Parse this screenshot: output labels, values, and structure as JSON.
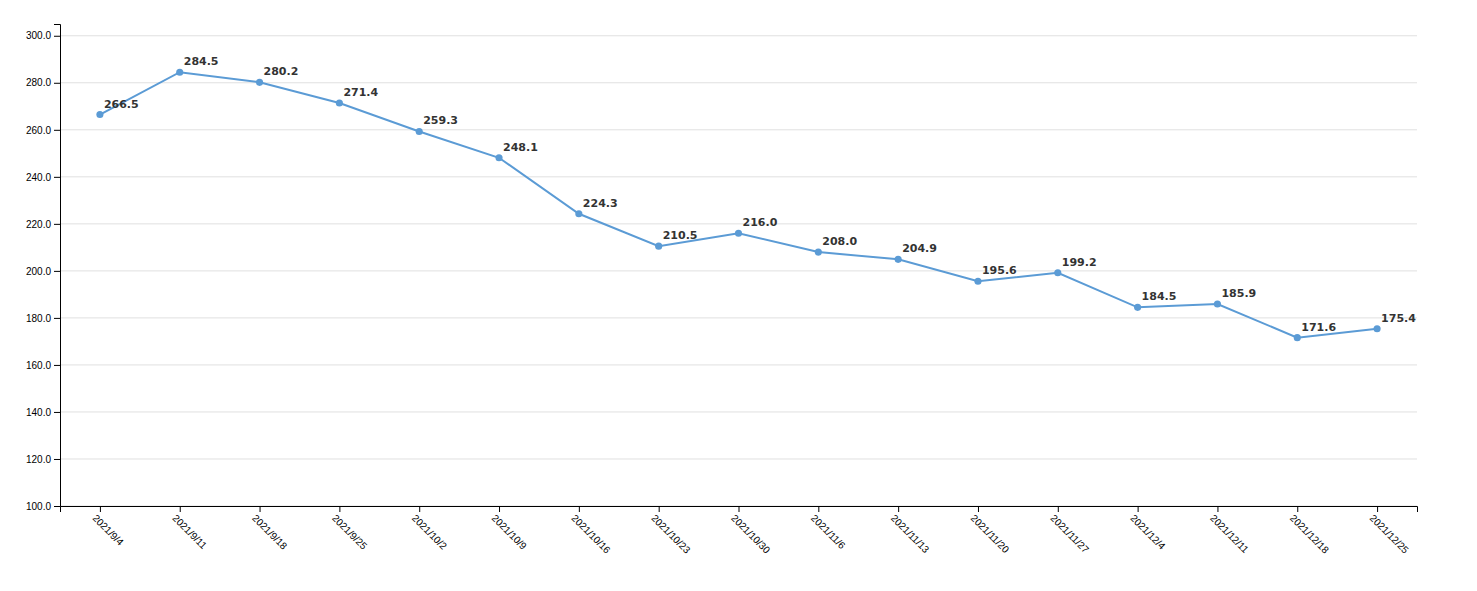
{
  "chart_data": {
    "type": "line",
    "categories": [
      "2021/9/4",
      "2021/9/11",
      "2021/9/18",
      "2021/9/25",
      "2021/10/2",
      "2021/10/9",
      "2021/10/16",
      "2021/10/23",
      "2021/10/30",
      "2021/11/6",
      "2021/11/13",
      "2021/11/20",
      "2021/11/27",
      "2021/12/4",
      "2021/12/11",
      "2021/12/18",
      "2021/12/25"
    ],
    "values": [
      266.5,
      284.5,
      280.2,
      271.4,
      259.3,
      248.1,
      224.3,
      210.5,
      216.0,
      208.0,
      204.9,
      195.6,
      199.2,
      184.5,
      185.9,
      171.6,
      175.4
    ],
    "value_labels": [
      "266.5",
      "284.5",
      "280.2",
      "271.4",
      "259.3",
      "248.1",
      "224.3",
      "210.5",
      "216.0",
      "208.0",
      "204.9",
      "195.6",
      "199.2",
      "184.5",
      "185.9",
      "171.6",
      "175.4"
    ],
    "color": "#5b9bd5",
    "marker": "circle",
    "ylim": [
      100.0,
      305.0
    ],
    "yticks": [
      {
        "value": 100,
        "label": "100.0"
      },
      {
        "value": 120,
        "label": "120.0"
      },
      {
        "value": 140,
        "label": "140.0"
      },
      {
        "value": 160,
        "label": "160.0"
      },
      {
        "value": 180,
        "label": "180.0"
      },
      {
        "value": 200,
        "label": "200.0"
      },
      {
        "value": 220,
        "label": "220.0"
      },
      {
        "value": 240,
        "label": "240.0"
      },
      {
        "value": 260,
        "label": "260.0"
      },
      {
        "value": 280,
        "label": "280.0"
      },
      {
        "value": 300,
        "label": "300.0"
      }
    ],
    "grid": true,
    "data_labels": true
  }
}
